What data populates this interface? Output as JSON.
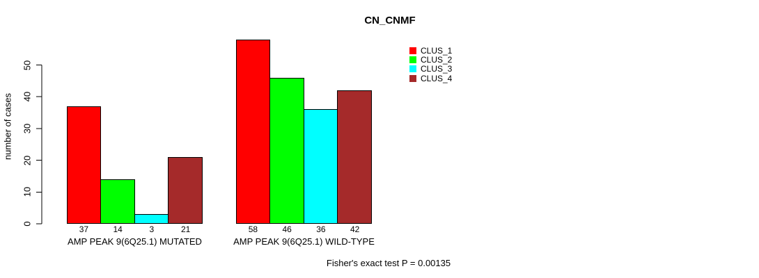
{
  "title": "CN_CNMF",
  "footer": "Fisher's exact test P = 0.00135",
  "chart_data": {
    "type": "bar",
    "title": "CN_CNMF",
    "xlabel": "",
    "ylabel": "number of cases",
    "ylim": [
      0,
      50
    ],
    "yticks": [
      0,
      10,
      20,
      30,
      40,
      50
    ],
    "grid": false,
    "legend_position": "top-right",
    "bar_value_labels": true,
    "categories": [
      "AMP PEAK 9(6Q25.1) MUTATED",
      "AMP PEAK 9(6Q25.1) WILD-TYPE"
    ],
    "groups": [
      {
        "label": "AMP PEAK 9(6Q25.1) MUTATED",
        "values": [
          37,
          14,
          3,
          21
        ]
      },
      {
        "label": "AMP PEAK 9(6Q25.1) WILD-TYPE",
        "values": [
          58,
          46,
          36,
          42
        ]
      }
    ],
    "series": [
      {
        "name": "CLUS_1",
        "color": "#FF0000"
      },
      {
        "name": "CLUS_2",
        "color": "#00FF00"
      },
      {
        "name": "CLUS_3",
        "color": "#00FFFF"
      },
      {
        "name": "CLUS_4",
        "color": "#A52A2A"
      }
    ],
    "annotation": "Fisher's exact test P = 0.00135"
  }
}
